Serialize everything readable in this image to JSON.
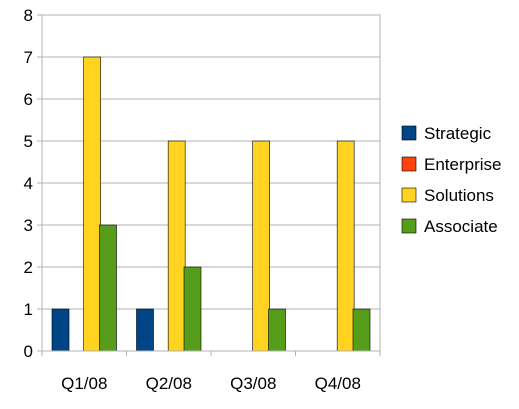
{
  "chart_data": {
    "type": "bar",
    "categories": [
      "Q1/08",
      "Q2/08",
      "Q3/08",
      "Q4/08"
    ],
    "series": [
      {
        "name": "Strategic",
        "color": "#004586",
        "values": [
          1,
          1,
          0,
          0
        ]
      },
      {
        "name": "Enterprise",
        "color": "#ff420e",
        "values": [
          0,
          0,
          0,
          0
        ]
      },
      {
        "name": "Solutions",
        "color": "#ffd320",
        "values": [
          7,
          5,
          5,
          5
        ]
      },
      {
        "name": "Associate",
        "color": "#579d1c",
        "values": [
          3,
          2,
          1,
          1
        ]
      }
    ],
    "ylim": [
      0,
      8
    ],
    "yticks": [
      0,
      1,
      2,
      3,
      4,
      5,
      6,
      7,
      8
    ],
    "grid": true,
    "legend_position": "right"
  }
}
